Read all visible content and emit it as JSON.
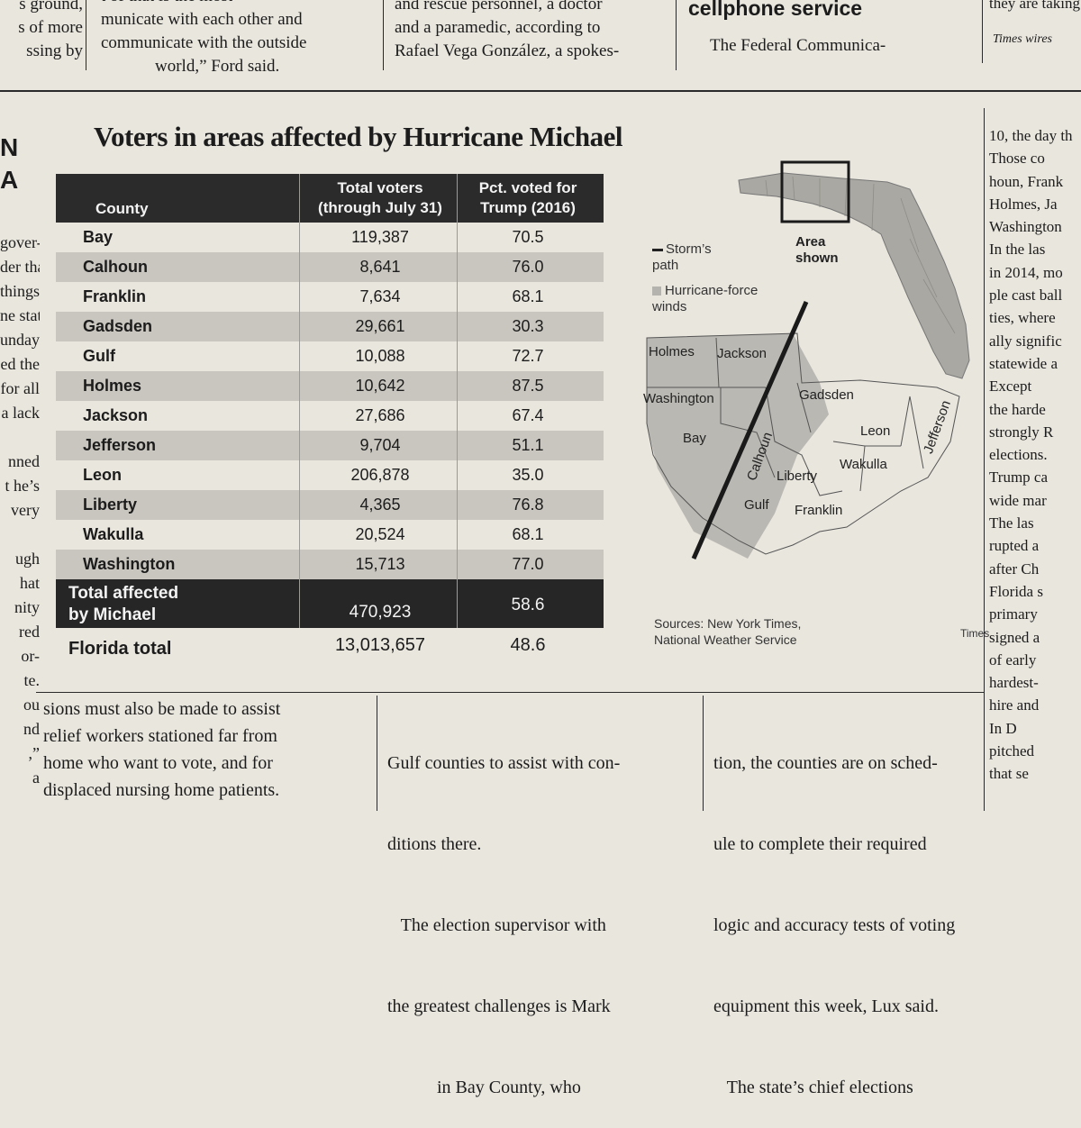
{
  "top_columns": {
    "col_a": [
      "s ground,",
      "s of more",
      "ssing by"
    ],
    "col_b": [
      "t of that is the most",
      "municate with each other and",
      "communicate with the outside",
      "world,” Ford said."
    ],
    "col_c": [
      "and rescue personnel, a doctor",
      "and a paramedic, according to",
      "Rafael Vega González, a spokes-"
    ],
    "col_d_head": "cellphone service",
    "col_d_line": "The Federal Communica-",
    "col_e": [
      "they are taking",
      "Times wires"
    ]
  },
  "left_fragments": {
    "heading": [
      "N",
      "A"
    ],
    "lines": [
      "gover-",
      "der that",
      "things,”",
      "ne state",
      "unday.",
      "ed the",
      "for all",
      "a lack",
      "",
      "nned",
      "t he’s",
      "very",
      "",
      "ugh",
      "hat",
      "nity",
      "red",
      "or-",
      "te.",
      "ou",
      "nd",
      ",”",
      "a"
    ]
  },
  "right_column": [
    "10, the day th",
    "Those co",
    "houn, Frank",
    "Holmes, Ja",
    "Washington",
    "In the las",
    "in 2014, mo",
    "ple cast ball",
    "ties, where",
    "ally signific",
    "statewide a",
    "Except",
    "the harde",
    "strongly R",
    "elections.",
    "Trump ca",
    "wide mar",
    "The las",
    "rupted a",
    "after Ch",
    "Florida s",
    "primary",
    "signed a",
    "of early",
    "hardest-",
    "hire and",
    "In D",
    "pitched",
    "that se"
  ],
  "graphic": {
    "headline": "Voters in areas affected by Hurricane Michael",
    "table": {
      "headers": [
        "County",
        "Total voters\n(through July 31)",
        "Pct. voted for\nTrump (2016)"
      ],
      "rows": [
        [
          "Bay",
          "119,387",
          "70.5"
        ],
        [
          "Calhoun",
          "8,641",
          "76.0"
        ],
        [
          "Franklin",
          "7,634",
          "68.1"
        ],
        [
          "Gadsden",
          "29,661",
          "30.3"
        ],
        [
          "Gulf",
          "10,088",
          "72.7"
        ],
        [
          "Holmes",
          "10,642",
          "87.5"
        ],
        [
          "Jackson",
          "27,686",
          "67.4"
        ],
        [
          "Jefferson",
          "9,704",
          "51.1"
        ],
        [
          "Leon",
          "206,878",
          "35.0"
        ],
        [
          "Liberty",
          "4,365",
          "76.8"
        ],
        [
          "Wakulla",
          "20,524",
          "68.1"
        ],
        [
          "Washington",
          "15,713",
          "77.0"
        ]
      ],
      "total_affected": [
        "Total affected\nby Michael",
        "470,923",
        "58.6"
      ],
      "florida_total": [
        "Florida total",
        "13,013,657",
        "48.6"
      ]
    },
    "map": {
      "legend_path": "Storm’s\npath",
      "legend_winds": "Hurricane-force\nwinds",
      "area_shown": "Area\nshown",
      "counties": [
        "Holmes",
        "Jackson",
        "Washington",
        "Gadsden",
        "Bay",
        "Calhoun",
        "Leon",
        "Jefferson",
        "Wakulla",
        "Liberty",
        "Gulf",
        "Franklin"
      ],
      "sources": "Sources: New York Times,\nNational Weather Service",
      "credit": "Times"
    }
  },
  "bottom_columns": {
    "col_a": [
      "sions must also be made to assist",
      "relief workers stationed far from",
      "home who want to vote, and for",
      "displaced nursing home patients."
    ],
    "col_b": [
      "Gulf counties to assist with con-",
      "ditions there.",
      "   The election supervisor with",
      "the greatest challenges is Mark",
      "           in Bay County, who"
    ],
    "col_c": [
      "tion, the counties are on sched-",
      "ule to complete their required",
      "logic and accuracy tests of voting",
      "equipment this week, Lux said.",
      "   The state’s chief elections"
    ]
  }
}
